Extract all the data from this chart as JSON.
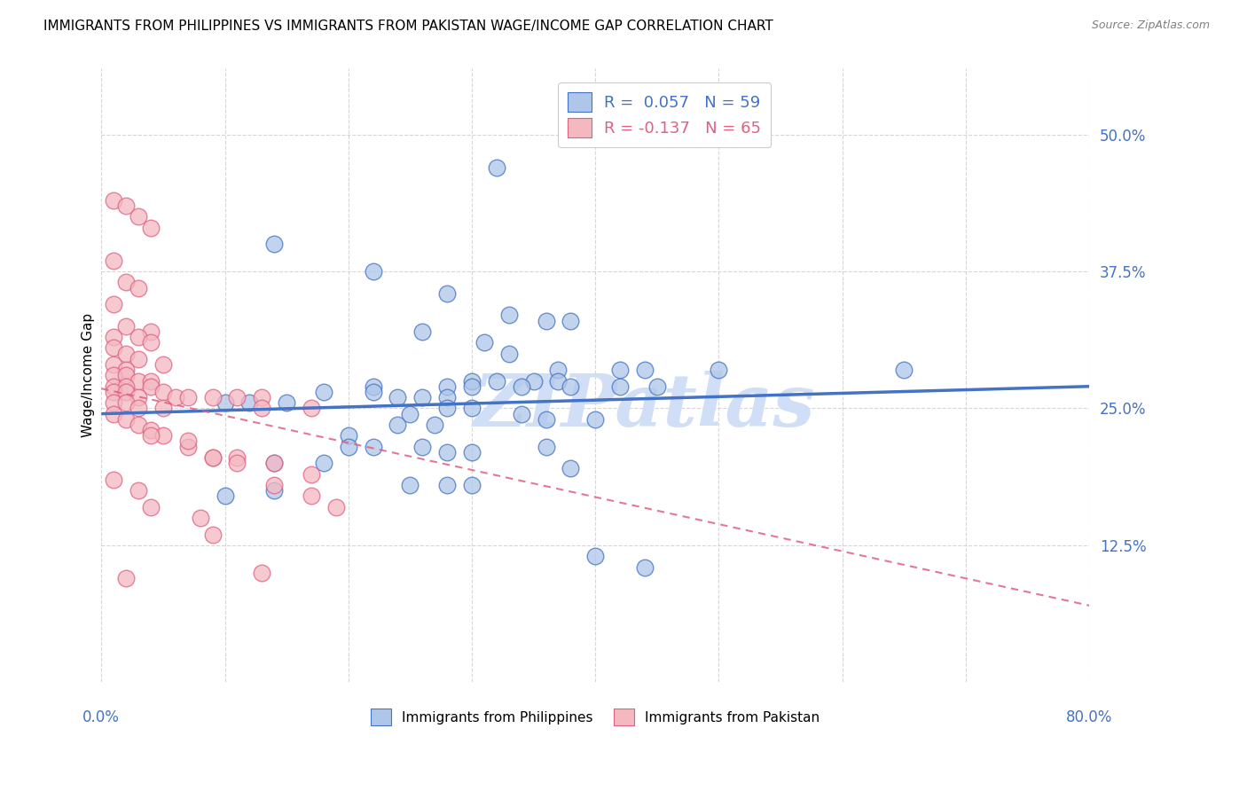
{
  "title": "IMMIGRANTS FROM PHILIPPINES VS IMMIGRANTS FROM PAKISTAN WAGE/INCOME GAP CORRELATION CHART",
  "source": "Source: ZipAtlas.com",
  "ylabel": "Wage/Income Gap",
  "legend_entries": [
    {
      "label": "R =  0.057   N = 59",
      "color": "#aec6e8"
    },
    {
      "label": "R = -0.137   N = 65",
      "color": "#f4b8c1"
    }
  ],
  "legend_labels_bottom": [
    "Immigrants from Philippines",
    "Immigrants from Pakistan"
  ],
  "watermark": "ZIPatlas",
  "blue_scatter_x": [
    0.32,
    0.14,
    0.22,
    0.28,
    0.33,
    0.36,
    0.38,
    0.26,
    0.31,
    0.33,
    0.37,
    0.42,
    0.44,
    0.3,
    0.32,
    0.35,
    0.37,
    0.22,
    0.28,
    0.3,
    0.34,
    0.38,
    0.42,
    0.45,
    0.18,
    0.22,
    0.24,
    0.26,
    0.28,
    0.1,
    0.12,
    0.15,
    0.28,
    0.3,
    0.34,
    0.36,
    0.4,
    0.24,
    0.27,
    0.5,
    0.2,
    0.22,
    0.26,
    0.28,
    0.3,
    0.36,
    0.14,
    0.18,
    0.65,
    0.1,
    0.14,
    0.25,
    0.28,
    0.3,
    0.38,
    0.4,
    0.44,
    0.2,
    0.25
  ],
  "blue_scatter_y": [
    0.47,
    0.4,
    0.375,
    0.355,
    0.335,
    0.33,
    0.33,
    0.32,
    0.31,
    0.3,
    0.285,
    0.285,
    0.285,
    0.275,
    0.275,
    0.275,
    0.275,
    0.27,
    0.27,
    0.27,
    0.27,
    0.27,
    0.27,
    0.27,
    0.265,
    0.265,
    0.26,
    0.26,
    0.26,
    0.255,
    0.255,
    0.255,
    0.25,
    0.25,
    0.245,
    0.24,
    0.24,
    0.235,
    0.235,
    0.285,
    0.225,
    0.215,
    0.215,
    0.21,
    0.21,
    0.215,
    0.2,
    0.2,
    0.285,
    0.17,
    0.175,
    0.18,
    0.18,
    0.18,
    0.195,
    0.115,
    0.105,
    0.215,
    0.245
  ],
  "pink_scatter_x": [
    0.01,
    0.02,
    0.03,
    0.04,
    0.01,
    0.02,
    0.03,
    0.01,
    0.02,
    0.04,
    0.01,
    0.03,
    0.04,
    0.01,
    0.02,
    0.03,
    0.05,
    0.01,
    0.02,
    0.01,
    0.02,
    0.03,
    0.04,
    0.01,
    0.02,
    0.04,
    0.05,
    0.01,
    0.02,
    0.03,
    0.06,
    0.07,
    0.09,
    0.11,
    0.13,
    0.01,
    0.02,
    0.03,
    0.05,
    0.13,
    0.17,
    0.01,
    0.02,
    0.03,
    0.04,
    0.05,
    0.07,
    0.09,
    0.11,
    0.14,
    0.17,
    0.01,
    0.04,
    0.08,
    0.09,
    0.13,
    0.02,
    0.03,
    0.04,
    0.07,
    0.09,
    0.11,
    0.14,
    0.17,
    0.19
  ],
  "pink_scatter_y": [
    0.44,
    0.435,
    0.425,
    0.415,
    0.385,
    0.365,
    0.36,
    0.345,
    0.325,
    0.32,
    0.315,
    0.315,
    0.31,
    0.305,
    0.3,
    0.295,
    0.29,
    0.29,
    0.285,
    0.28,
    0.28,
    0.275,
    0.275,
    0.27,
    0.27,
    0.27,
    0.265,
    0.265,
    0.265,
    0.26,
    0.26,
    0.26,
    0.26,
    0.26,
    0.26,
    0.255,
    0.255,
    0.25,
    0.25,
    0.25,
    0.25,
    0.245,
    0.24,
    0.235,
    0.23,
    0.225,
    0.215,
    0.205,
    0.205,
    0.2,
    0.19,
    0.185,
    0.16,
    0.15,
    0.135,
    0.1,
    0.095,
    0.175,
    0.225,
    0.22,
    0.205,
    0.2,
    0.18,
    0.17,
    0.16
  ],
  "blue_line_x": [
    0.0,
    0.8
  ],
  "blue_line_y": [
    0.245,
    0.27
  ],
  "pink_line_x": [
    0.0,
    0.8
  ],
  "pink_line_y": [
    0.268,
    0.07
  ],
  "xlim": [
    0.0,
    0.8
  ],
  "ylim": [
    0.0,
    0.56
  ],
  "ytick_values": [
    0.125,
    0.25,
    0.375,
    0.5
  ],
  "xtick_values": [
    0.0,
    0.1,
    0.2,
    0.3,
    0.4,
    0.5,
    0.6,
    0.7,
    0.8
  ],
  "blue_color": "#aec6e8",
  "blue_line_color": "#4472c4",
  "pink_color": "#f4b8c1",
  "pink_line_color": "#e06080",
  "background_color": "#ffffff",
  "grid_color": "#cccccc",
  "title_fontsize": 11,
  "watermark_color": "#d0dff5",
  "watermark_fontsize": 60,
  "scatter_size": 180,
  "scatter_linewidth": 1.0,
  "scatter_alpha": 0.75
}
